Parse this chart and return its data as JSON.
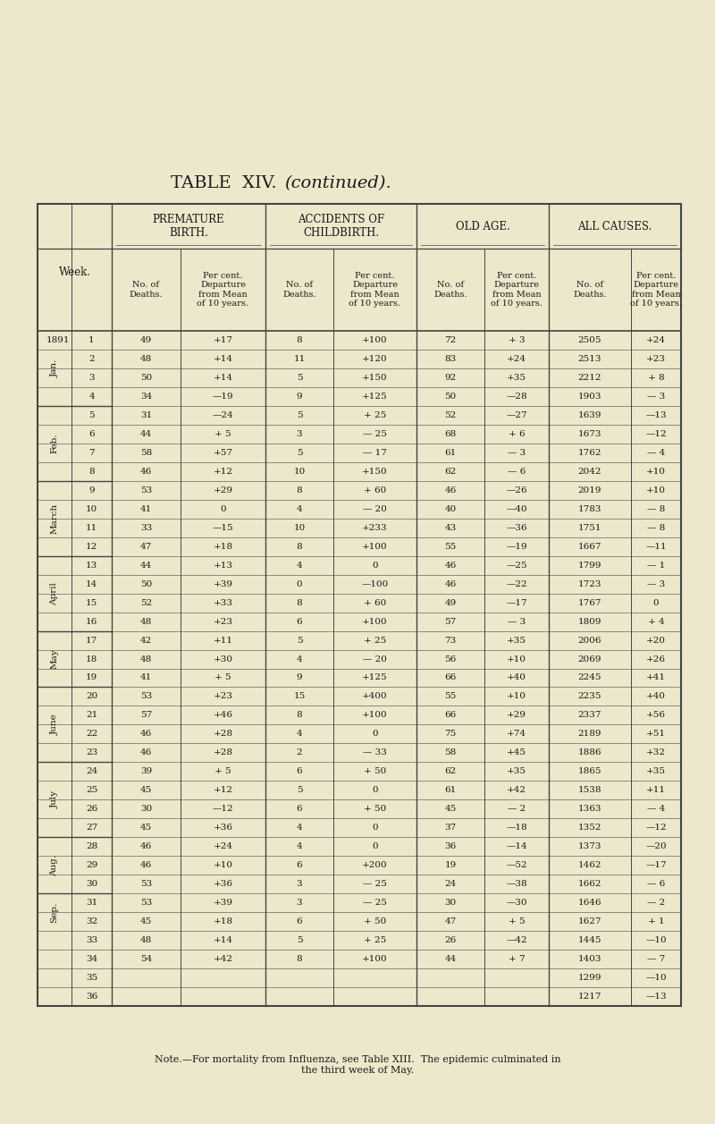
{
  "title_normal": "TABLE  XIV.",
  "title_italic": "(continued).",
  "bg_color": "#ede8cc",
  "text_color": "#1a1a1a",
  "note": "Note.—For mortality from Influenza, see Table XIII.  The epidemic culminated in\nthe third week of May.",
  "months": [
    "Jan.",
    "Feb.",
    "March",
    "April",
    "May",
    "June",
    "July",
    "Aug.",
    "Sep."
  ],
  "month_row_spans": [
    4,
    4,
    4,
    4,
    3,
    4,
    4,
    3,
    2
  ],
  "rows": [
    [
      "1891",
      "1",
      "49",
      "+17",
      "8",
      "+100",
      "72",
      "+ 3",
      "2505",
      "+24"
    ],
    [
      "",
      "2",
      "48",
      "+14",
      "11",
      "+120",
      "83",
      "+24",
      "2513",
      "+23"
    ],
    [
      "",
      "3",
      "50",
      "+14",
      "5",
      "+150",
      "92",
      "+35",
      "2212",
      "+ 8"
    ],
    [
      "",
      "4",
      "34",
      "—19",
      "9",
      "+125",
      "50",
      "—28",
      "1903",
      "— 3"
    ],
    [
      "",
      "5",
      "31",
      "—24",
      "5",
      "+ 25",
      "52",
      "—27",
      "1639",
      "—13"
    ],
    [
      "",
      "6",
      "44",
      "+ 5",
      "3",
      "— 25",
      "68",
      "+ 6",
      "1673",
      "—12"
    ],
    [
      "",
      "7",
      "58",
      "+57",
      "5",
      "— 17",
      "61",
      "— 3",
      "1762",
      "— 4"
    ],
    [
      "",
      "8",
      "46",
      "+12",
      "10",
      "+150",
      "62",
      "— 6",
      "2042",
      "+10"
    ],
    [
      "",
      "9",
      "53",
      "+29",
      "8",
      "+ 60",
      "46",
      "—26",
      "2019",
      "+10"
    ],
    [
      "",
      "10",
      "41",
      "0",
      "4",
      "— 20",
      "40",
      "—40",
      "1783",
      "— 8"
    ],
    [
      "",
      "11",
      "33",
      "—15",
      "10",
      "+233",
      "43",
      "—36",
      "1751",
      "— 8"
    ],
    [
      "",
      "12",
      "47",
      "+18",
      "8",
      "+100",
      "55",
      "—19",
      "1667",
      "—11"
    ],
    [
      "",
      "13",
      "44",
      "+13",
      "4",
      "0",
      "46",
      "—25",
      "1799",
      "— 1"
    ],
    [
      "",
      "14",
      "50",
      "+39",
      "0",
      "—100",
      "46",
      "—22",
      "1723",
      "— 3"
    ],
    [
      "",
      "15",
      "52",
      "+33",
      "8",
      "+ 60",
      "49",
      "—17",
      "1767",
      "0"
    ],
    [
      "",
      "16",
      "48",
      "+23",
      "6",
      "+100",
      "57",
      "— 3",
      "1809",
      "+ 4"
    ],
    [
      "",
      "17",
      "42",
      "+11",
      "5",
      "+ 25",
      "73",
      "+35",
      "2006",
      "+20"
    ],
    [
      "",
      "18",
      "48",
      "+30",
      "4",
      "— 20",
      "56",
      "+10",
      "2069",
      "+26"
    ],
    [
      "",
      "19",
      "41",
      "+ 5",
      "9",
      "+125",
      "66",
      "+40",
      "2245",
      "+41"
    ],
    [
      "",
      "20",
      "53",
      "+23",
      "15",
      "+400",
      "55",
      "+10",
      "2235",
      "+40"
    ],
    [
      "",
      "21",
      "57",
      "+46",
      "8",
      "+100",
      "66",
      "+29",
      "2337",
      "+56"
    ],
    [
      "",
      "22",
      "46",
      "+28",
      "4",
      "0",
      "75",
      "+74",
      "2189",
      "+51"
    ],
    [
      "",
      "23",
      "46",
      "+28",
      "2",
      "— 33",
      "58",
      "+45",
      "1886",
      "+32"
    ],
    [
      "",
      "24",
      "39",
      "+ 5",
      "6",
      "+ 50",
      "62",
      "+35",
      "1865",
      "+35"
    ],
    [
      "",
      "25",
      "45",
      "+12",
      "5",
      "0",
      "61",
      "+42",
      "1538",
      "+11"
    ],
    [
      "",
      "26",
      "30",
      "—12",
      "6",
      "+ 50",
      "45",
      "— 2",
      "1363",
      "— 4"
    ],
    [
      "",
      "27",
      "45",
      "+36",
      "4",
      "0",
      "37",
      "—18",
      "1352",
      "—12"
    ],
    [
      "",
      "28",
      "46",
      "+24",
      "4",
      "0",
      "36",
      "—14",
      "1373",
      "—20"
    ],
    [
      "",
      "29",
      "46",
      "+10",
      "6",
      "+200",
      "19",
      "—52",
      "1462",
      "—17"
    ],
    [
      "",
      "30",
      "53",
      "+36",
      "3",
      "— 25",
      "24",
      "—38",
      "1662",
      "— 6"
    ],
    [
      "",
      "31",
      "53",
      "+39",
      "3",
      "— 25",
      "30",
      "—30",
      "1646",
      "— 2"
    ],
    [
      "",
      "32",
      "45",
      "+18",
      "6",
      "+ 50",
      "47",
      "+ 5",
      "1627",
      "+ 1"
    ],
    [
      "",
      "33",
      "48",
      "+14",
      "5",
      "+ 25",
      "26",
      "—42",
      "1445",
      "—10"
    ],
    [
      "",
      "34",
      "54",
      "+42",
      "8",
      "+100",
      "44",
      "+ 7",
      "1403",
      "— 7"
    ],
    [
      "",
      "35",
      "",
      "",
      "",
      "",
      "",
      "",
      "1299",
      "—10"
    ],
    [
      "",
      "36",
      "",
      "",
      "",
      "",
      "",
      "",
      "1217",
      "—13"
    ]
  ]
}
